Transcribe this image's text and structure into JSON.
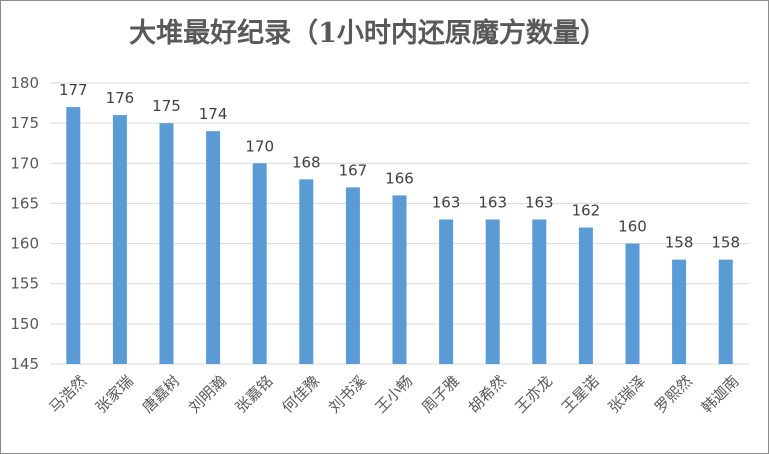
{
  "chart_data": {
    "type": "bar",
    "title": "大堆最好纪录（1小时内还原魔方数量）",
    "xlabel": "",
    "ylabel": "",
    "categories": [
      "马浩然",
      "张家瑞",
      "唐嘉树",
      "刘明瀚",
      "张嘉铭",
      "何佳豫",
      "刘书溪",
      "王小畅",
      "周子雅",
      "胡希然",
      "王亦龙",
      "王星诺",
      "张瑞泽",
      "罗熙然",
      "韩迦南"
    ],
    "values": [
      177,
      176,
      175,
      174,
      170,
      168,
      167,
      166,
      163,
      163,
      163,
      162,
      160,
      158,
      158
    ],
    "ylim": [
      145,
      180
    ],
    "yticks": [
      145,
      150,
      155,
      160,
      165,
      170,
      175,
      180
    ],
    "grid": true,
    "legend": "none",
    "bar_color": "#5b9bd5"
  }
}
